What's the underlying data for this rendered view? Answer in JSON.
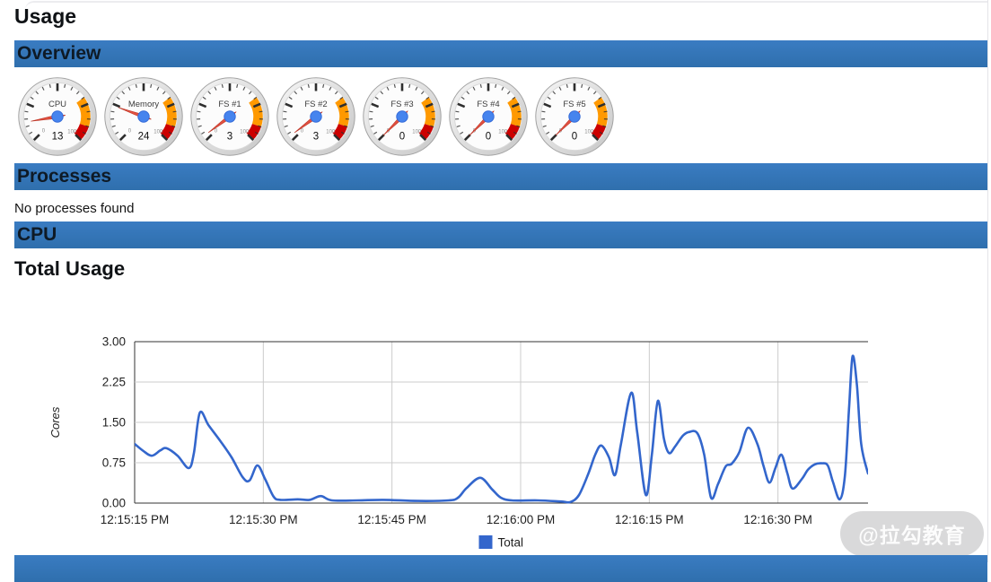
{
  "page": {
    "title": "Usage"
  },
  "sections": {
    "overview": "Overview",
    "processes": "Processes",
    "cpu": "CPU"
  },
  "processes": {
    "empty_message": "No processes found"
  },
  "cpu_section": {
    "chart_title": "Total Usage"
  },
  "watermark": {
    "text": "@拉勾教育"
  },
  "colors": {
    "section_header_blue": "#3579BE",
    "section_header_blue_dark": "#2F6FAD",
    "chart_line_blue": "#3366CC",
    "gridline": "#CCCCCC",
    "axis_dark": "#333333",
    "gauge_band_orange": "#FF9900",
    "gauge_band_red": "#CC0000",
    "gauge_needle_red": "#E25141",
    "gauge_needle_edge": "#BC3425",
    "gauge_hub_blue": "#4684EE"
  },
  "gauges": {
    "min": 0,
    "max": 100,
    "yellow_from": 70,
    "yellow_to": 90,
    "red_from": 90,
    "red_to": 100,
    "minor_label_min": "0",
    "minor_label_max": "100",
    "items": [
      {
        "label": "CPU",
        "value": 13
      },
      {
        "label": "Memory",
        "value": 24
      },
      {
        "label": "FS #1",
        "value": 3
      },
      {
        "label": "FS #2",
        "value": 3
      },
      {
        "label": "FS #3",
        "value": 0
      },
      {
        "label": "FS #4",
        "value": 0
      },
      {
        "label": "FS #5",
        "value": 0
      }
    ]
  },
  "chart_data": {
    "type": "line",
    "title": "Total Usage",
    "xlabel": "",
    "ylabel": "Cores",
    "ylim": [
      0,
      3
    ],
    "grid": true,
    "legend_position": "bottom-center",
    "y_ticks": [
      "0.00",
      "0.75",
      "1.50",
      "2.25",
      "3.00"
    ],
    "x_tick_labels": [
      "12:15:15 PM",
      "12:15:30 PM",
      "12:15:45 PM",
      "12:16:00 PM",
      "12:16:15 PM",
      "12:16:30 PM"
    ],
    "x_tick_seconds": [
      0,
      15,
      30,
      45,
      60,
      75
    ],
    "x_range_seconds": [
      0,
      85.5
    ],
    "legend": [
      {
        "label": "Total",
        "color": "#3366CC"
      }
    ],
    "series": [
      {
        "name": "Total",
        "color": "#3366CC",
        "points": [
          [
            0,
            1.1
          ],
          [
            1,
            0.97
          ],
          [
            2,
            0.88
          ],
          [
            3,
            0.98
          ],
          [
            3.7,
            1.02
          ],
          [
            5,
            0.88
          ],
          [
            6.3,
            0.65
          ],
          [
            6.9,
            0.92
          ],
          [
            7.6,
            1.68
          ],
          [
            8.6,
            1.45
          ],
          [
            10,
            1.15
          ],
          [
            11.3,
            0.85
          ],
          [
            12.6,
            0.48
          ],
          [
            13.4,
            0.42
          ],
          [
            14.3,
            0.7
          ],
          [
            15.2,
            0.45
          ],
          [
            16.2,
            0.12
          ],
          [
            17,
            0.06
          ],
          [
            19,
            0.07
          ],
          [
            20.4,
            0.06
          ],
          [
            21.7,
            0.13
          ],
          [
            23,
            0.05
          ],
          [
            26,
            0.05
          ],
          [
            29,
            0.06
          ],
          [
            33,
            0.04
          ],
          [
            36.6,
            0.05
          ],
          [
            37.7,
            0.1
          ],
          [
            38.7,
            0.28
          ],
          [
            40.3,
            0.47
          ],
          [
            41.7,
            0.25
          ],
          [
            42.7,
            0.1
          ],
          [
            44,
            0.05
          ],
          [
            47,
            0.05
          ],
          [
            49.7,
            0.03
          ],
          [
            50.8,
            0.02
          ],
          [
            51.8,
            0.15
          ],
          [
            52.9,
            0.55
          ],
          [
            53.7,
            0.9
          ],
          [
            54.4,
            1.07
          ],
          [
            55.3,
            0.85
          ],
          [
            56,
            0.52
          ],
          [
            56.7,
            1.1
          ],
          [
            57.9,
            2.05
          ],
          [
            58.6,
            1.3
          ],
          [
            59.6,
            0.15
          ],
          [
            60.3,
            0.9
          ],
          [
            61,
            1.9
          ],
          [
            61.7,
            1.2
          ],
          [
            62.3,
            0.93
          ],
          [
            63,
            1.05
          ],
          [
            63.9,
            1.25
          ],
          [
            64.6,
            1.32
          ],
          [
            65.6,
            1.3
          ],
          [
            66.4,
            0.9
          ],
          [
            67.2,
            0.1
          ],
          [
            68,
            0.35
          ],
          [
            68.9,
            0.68
          ],
          [
            69.6,
            0.73
          ],
          [
            70.5,
            0.95
          ],
          [
            71.5,
            1.4
          ],
          [
            72.6,
            1.1
          ],
          [
            73.3,
            0.7
          ],
          [
            74,
            0.38
          ],
          [
            74.7,
            0.65
          ],
          [
            75.4,
            0.9
          ],
          [
            76.1,
            0.55
          ],
          [
            76.7,
            0.27
          ],
          [
            77.8,
            0.45
          ],
          [
            78.5,
            0.62
          ],
          [
            79.3,
            0.72
          ],
          [
            80.1,
            0.74
          ],
          [
            80.8,
            0.7
          ],
          [
            81.4,
            0.4
          ],
          [
            82.2,
            0.07
          ],
          [
            82.8,
            0.5
          ],
          [
            83.3,
            1.8
          ],
          [
            83.7,
            2.73
          ],
          [
            84.2,
            2.2
          ],
          [
            84.7,
            1.1
          ],
          [
            85.5,
            0.55
          ]
        ]
      }
    ]
  }
}
